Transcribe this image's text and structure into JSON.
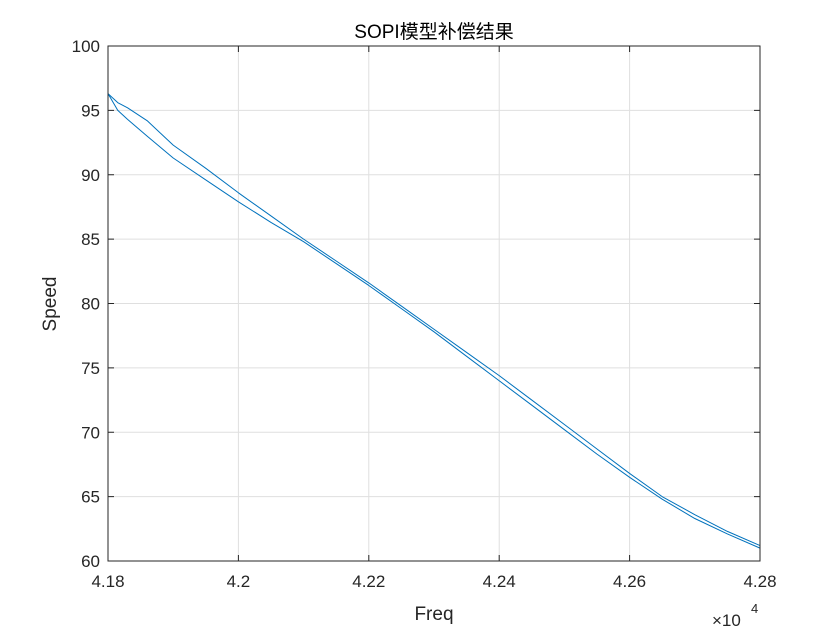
{
  "chart_data": {
    "type": "line",
    "title": "SOPI模型补偿结果",
    "xlabel": "Freq",
    "ylabel": "Speed",
    "x_exponent_base": "×10",
    "x_exponent_power": "4",
    "xlim": [
      41800,
      42800
    ],
    "ylim": [
      60,
      100
    ],
    "x_ticks": [
      41800,
      42000,
      42200,
      42400,
      42600,
      42800
    ],
    "x_tick_labels": [
      "4.18",
      "4.2",
      "4.22",
      "4.24",
      "4.26",
      "4.28"
    ],
    "y_ticks": [
      60,
      65,
      70,
      75,
      80,
      85,
      90,
      95,
      100
    ],
    "y_tick_labels": [
      "60",
      "65",
      "70",
      "75",
      "80",
      "85",
      "90",
      "95",
      "100"
    ],
    "grid": true,
    "color": "#0072bd",
    "series": [
      {
        "x": [
          41800,
          41815,
          41830,
          41860,
          41900,
          41950,
          42000,
          42050,
          42100,
          42150,
          42200,
          42250,
          42300,
          42350,
          42400,
          42450,
          42500,
          42550,
          42600,
          42650,
          42700,
          42750,
          42800
        ],
        "y": [
          96.3,
          95.6,
          95.2,
          94.2,
          92.3,
          90.5,
          88.6,
          86.8,
          85.0,
          83.3,
          81.6,
          79.8,
          78.0,
          76.2,
          74.4,
          72.5,
          70.6,
          68.7,
          66.8,
          65.0,
          63.6,
          62.3,
          61.2
        ]
      },
      {
        "x": [
          41800,
          41815,
          41830,
          41860,
          41900,
          41950,
          42000,
          42050,
          42100,
          42150,
          42200,
          42250,
          42300,
          42350,
          42400,
          42450,
          42500,
          42550,
          42600,
          42650,
          42700,
          42750,
          42800
        ],
        "y": [
          96.3,
          95.0,
          94.3,
          93.0,
          91.3,
          89.6,
          87.9,
          86.3,
          84.8,
          83.1,
          81.4,
          79.6,
          77.8,
          75.9,
          74.0,
          72.1,
          70.2,
          68.3,
          66.5,
          64.8,
          63.3,
          62.1,
          61.0
        ]
      }
    ]
  }
}
